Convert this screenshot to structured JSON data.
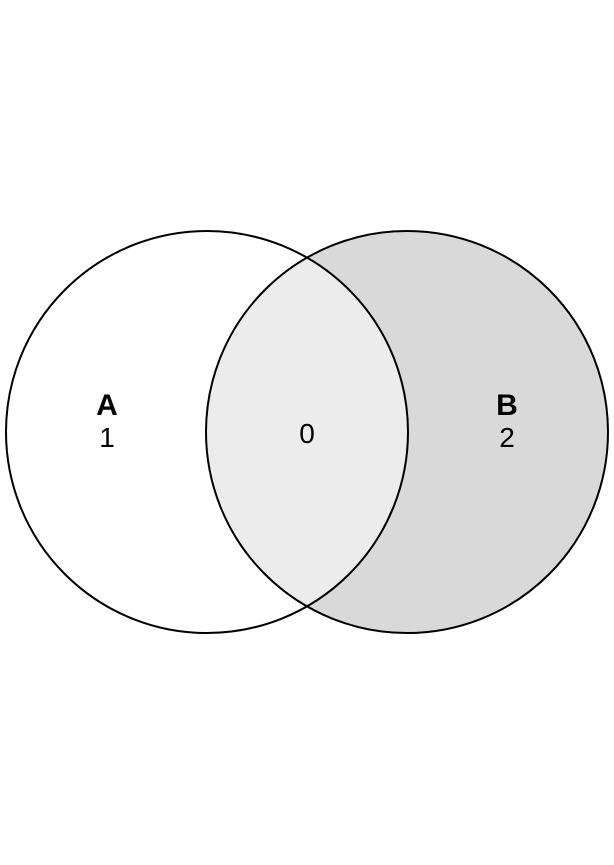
{
  "diagram": {
    "type": "venn",
    "sets": [
      {
        "name": "A",
        "only_count": "1",
        "fill": "#ffffff"
      },
      {
        "name": "B",
        "only_count": "2",
        "fill": "#d9d9d9"
      }
    ],
    "intersection": {
      "count": "0",
      "fill": "#ececec"
    },
    "outline_color": "#000000"
  }
}
